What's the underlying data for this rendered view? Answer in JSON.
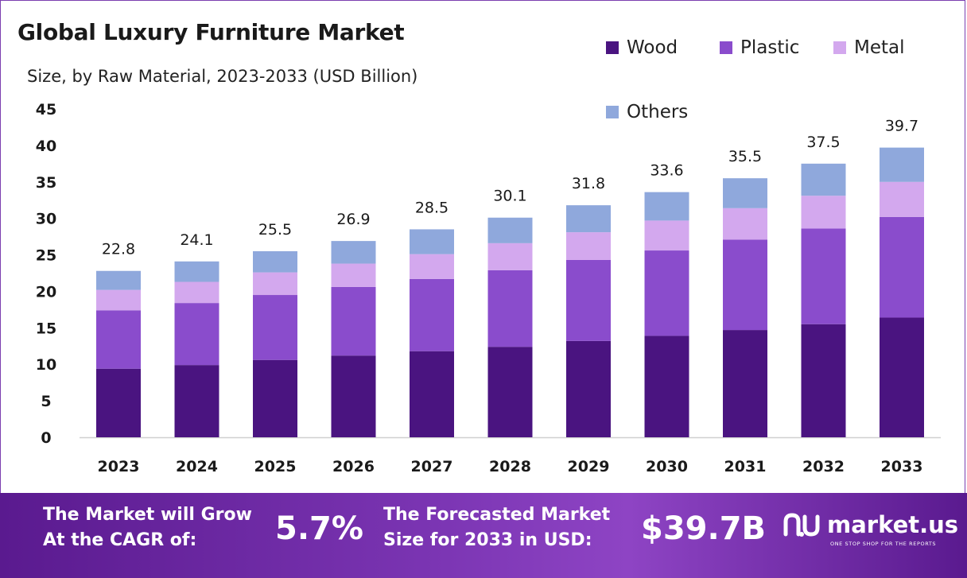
{
  "header": {
    "title": "Global Luxury Furniture Market",
    "subtitle": "Size, by Raw Material, 2023-2033 (USD Billion)"
  },
  "legend": {
    "items": [
      {
        "label": "Wood",
        "color": "#4a1480"
      },
      {
        "label": "Plastic",
        "color": "#8a4ccc"
      },
      {
        "label": "Metal",
        "color": "#d3a8ee"
      },
      {
        "label": "Others",
        "color": "#8fa8dc"
      }
    ]
  },
  "chart_data": {
    "type": "bar",
    "stacked": true,
    "title": "Global Luxury Furniture Market",
    "subtitle": "Size, by Raw Material, 2023-2033 (USD Billion)",
    "categories": [
      "2023",
      "2024",
      "2025",
      "2026",
      "2027",
      "2028",
      "2029",
      "2030",
      "2031",
      "2032",
      "2033"
    ],
    "series": [
      {
        "name": "Wood",
        "color": "#4a1480",
        "values": [
          9.4,
          9.9,
          10.6,
          11.2,
          11.8,
          12.4,
          13.2,
          13.9,
          14.7,
          15.5,
          16.4
        ]
      },
      {
        "name": "Plastic",
        "color": "#8a4ccc",
        "values": [
          8.0,
          8.5,
          8.9,
          9.4,
          9.9,
          10.5,
          11.1,
          11.7,
          12.4,
          13.1,
          13.8
        ]
      },
      {
        "name": "Metal",
        "color": "#d3a8ee",
        "values": [
          2.8,
          2.9,
          3.1,
          3.2,
          3.4,
          3.7,
          3.8,
          4.1,
          4.3,
          4.5,
          4.8
        ]
      },
      {
        "name": "Others",
        "color": "#8fa8dc",
        "values": [
          2.6,
          2.8,
          2.9,
          3.1,
          3.4,
          3.5,
          3.7,
          3.9,
          4.1,
          4.4,
          4.7
        ]
      }
    ],
    "totals": [
      22.8,
      24.1,
      25.5,
      26.9,
      28.5,
      30.1,
      31.8,
      33.6,
      35.5,
      37.5,
      39.7
    ],
    "total_labels": [
      "22.8",
      "24.1",
      "25.5",
      "26.9",
      "28.5",
      "30.1",
      "31.8",
      "33.6",
      "35.5",
      "37.5",
      "39.7"
    ],
    "ylim": [
      0,
      45
    ],
    "yticks": [
      "0",
      "5",
      "10",
      "15",
      "20",
      "25",
      "30",
      "35",
      "40",
      "45"
    ],
    "grid": false,
    "legend_position": "top-right",
    "xlabel": "",
    "ylabel": ""
  },
  "footer": {
    "cagr_text": "The Market will Grow\nAt the CAGR of:",
    "cagr_value": "5.7%",
    "forecast_text": "The Forecasted Market\nSize for 2033 in USD:",
    "forecast_value": "$39.7B",
    "logo_text": "market.us",
    "logo_tagline": "ONE STOP SHOP FOR THE REPORTS"
  }
}
